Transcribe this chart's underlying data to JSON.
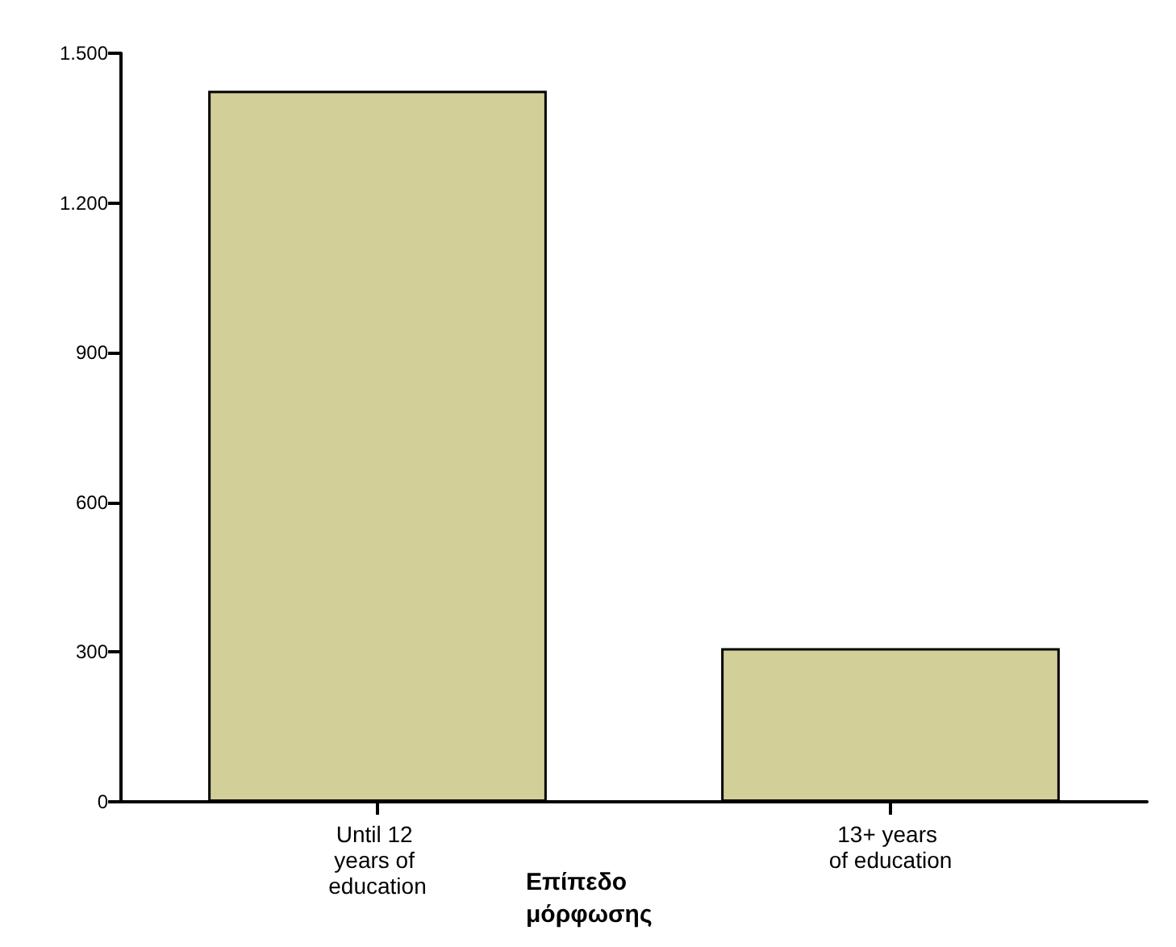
{
  "chart_data": {
    "type": "bar",
    "xlabel": "Επίπεδο μόρφωσης",
    "categories": [
      "Until 12 years of education",
      "13+ years of education"
    ],
    "values": [
      1425,
      308
    ],
    "color": "#d3cf98",
    "ylim": [
      0,
      1500
    ],
    "yticks": [
      0,
      300,
      600,
      900,
      {
        "value": 1200,
        "label": "1.200"
      },
      {
        "value": 1500,
        "label": "1.500"
      }
    ],
    "grid": false
  }
}
